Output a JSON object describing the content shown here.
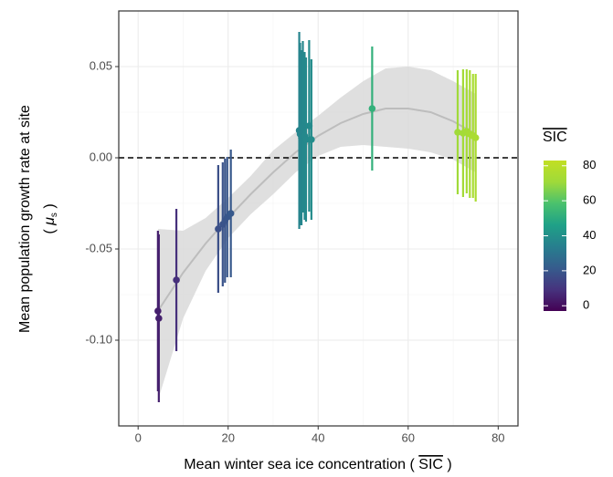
{
  "chart_data": {
    "type": "scatter",
    "x_label": [
      "Mean winter sea ice concentration (",
      "SIC",
      ")"
    ],
    "y_label": [
      "Mean population growth rate at site",
      "(",
      "μ",
      "s",
      ")"
    ],
    "xlim": [
      -4.3,
      84.4
    ],
    "xticks": [
      0,
      20,
      40,
      60,
      80
    ],
    "ylim": [
      -0.147,
      0.0805
    ],
    "yticks": [
      {
        "value": -0.1,
        "label": "-0.10"
      },
      -0.05,
      {
        "value": 0,
        "label": "0.00"
      },
      0.05
    ],
    "grid": true,
    "hline": 0,
    "series": [
      {
        "x": [
          4.4,
          4.6,
          8.5,
          17.8,
          18.8,
          19.3,
          19.8,
          20.6,
          35.8,
          36.0,
          36.3,
          36.6,
          37.0,
          37.3,
          38.0,
          38.5,
          52.0,
          71.0,
          72.2,
          73.0,
          73.7,
          74.4,
          75.0
        ],
        "values": [
          -0.084,
          -0.088,
          -0.067,
          -0.039,
          -0.0365,
          -0.0345,
          -0.0325,
          -0.0305,
          0.015,
          0.013,
          0.011,
          0.017,
          0.012,
          0.01,
          0.0175,
          0.01,
          0.027,
          0.014,
          0.0135,
          0.0145,
          0.013,
          0.012,
          0.011
        ],
        "errors": [
          0.044,
          0.046,
          0.039,
          0.035,
          0.034,
          0.034,
          0.033,
          0.035,
          0.054,
          0.05,
          0.048,
          0.047,
          0.046,
          0.045,
          0.047,
          0.044,
          0.034,
          0.034,
          0.035,
          0.034,
          0.035,
          0.034,
          0.035
        ]
      }
    ],
    "smooth": {
      "color": "#bdbdbd",
      "band_color": "#d9d9d9",
      "x": [
        4.4,
        10,
        15,
        20,
        25,
        30,
        35,
        40,
        45,
        50,
        55,
        60,
        65,
        70,
        75
      ],
      "values": [
        -0.084,
        -0.063,
        -0.047,
        -0.033,
        -0.02,
        -0.008,
        0.003,
        0.012,
        0.019,
        0.024,
        0.027,
        0.027,
        0.025,
        0.02,
        0.013
      ],
      "lower": [
        -0.133,
        -0.088,
        -0.062,
        -0.044,
        -0.031,
        -0.02,
        -0.008,
        0.001,
        0.006,
        0.007,
        0.006,
        0.005,
        0.003,
        -0.001,
        -0.008
      ],
      "upper": [
        -0.039,
        -0.04,
        -0.033,
        -0.022,
        -0.01,
        0.004,
        0.014,
        0.023,
        0.033,
        0.042,
        0.049,
        0.05,
        0.048,
        0.042,
        0.035
      ]
    },
    "colorbar": {
      "title": "SIC",
      "lim": [
        -3,
        83
      ],
      "ticks": [
        0,
        20,
        40,
        60,
        80
      ],
      "colors": [
        "#440154",
        "#46337e",
        "#365c8d",
        "#277f8e",
        "#1fa187",
        "#4ac16d",
        "#9fda3a",
        "#c2df23"
      ]
    }
  }
}
